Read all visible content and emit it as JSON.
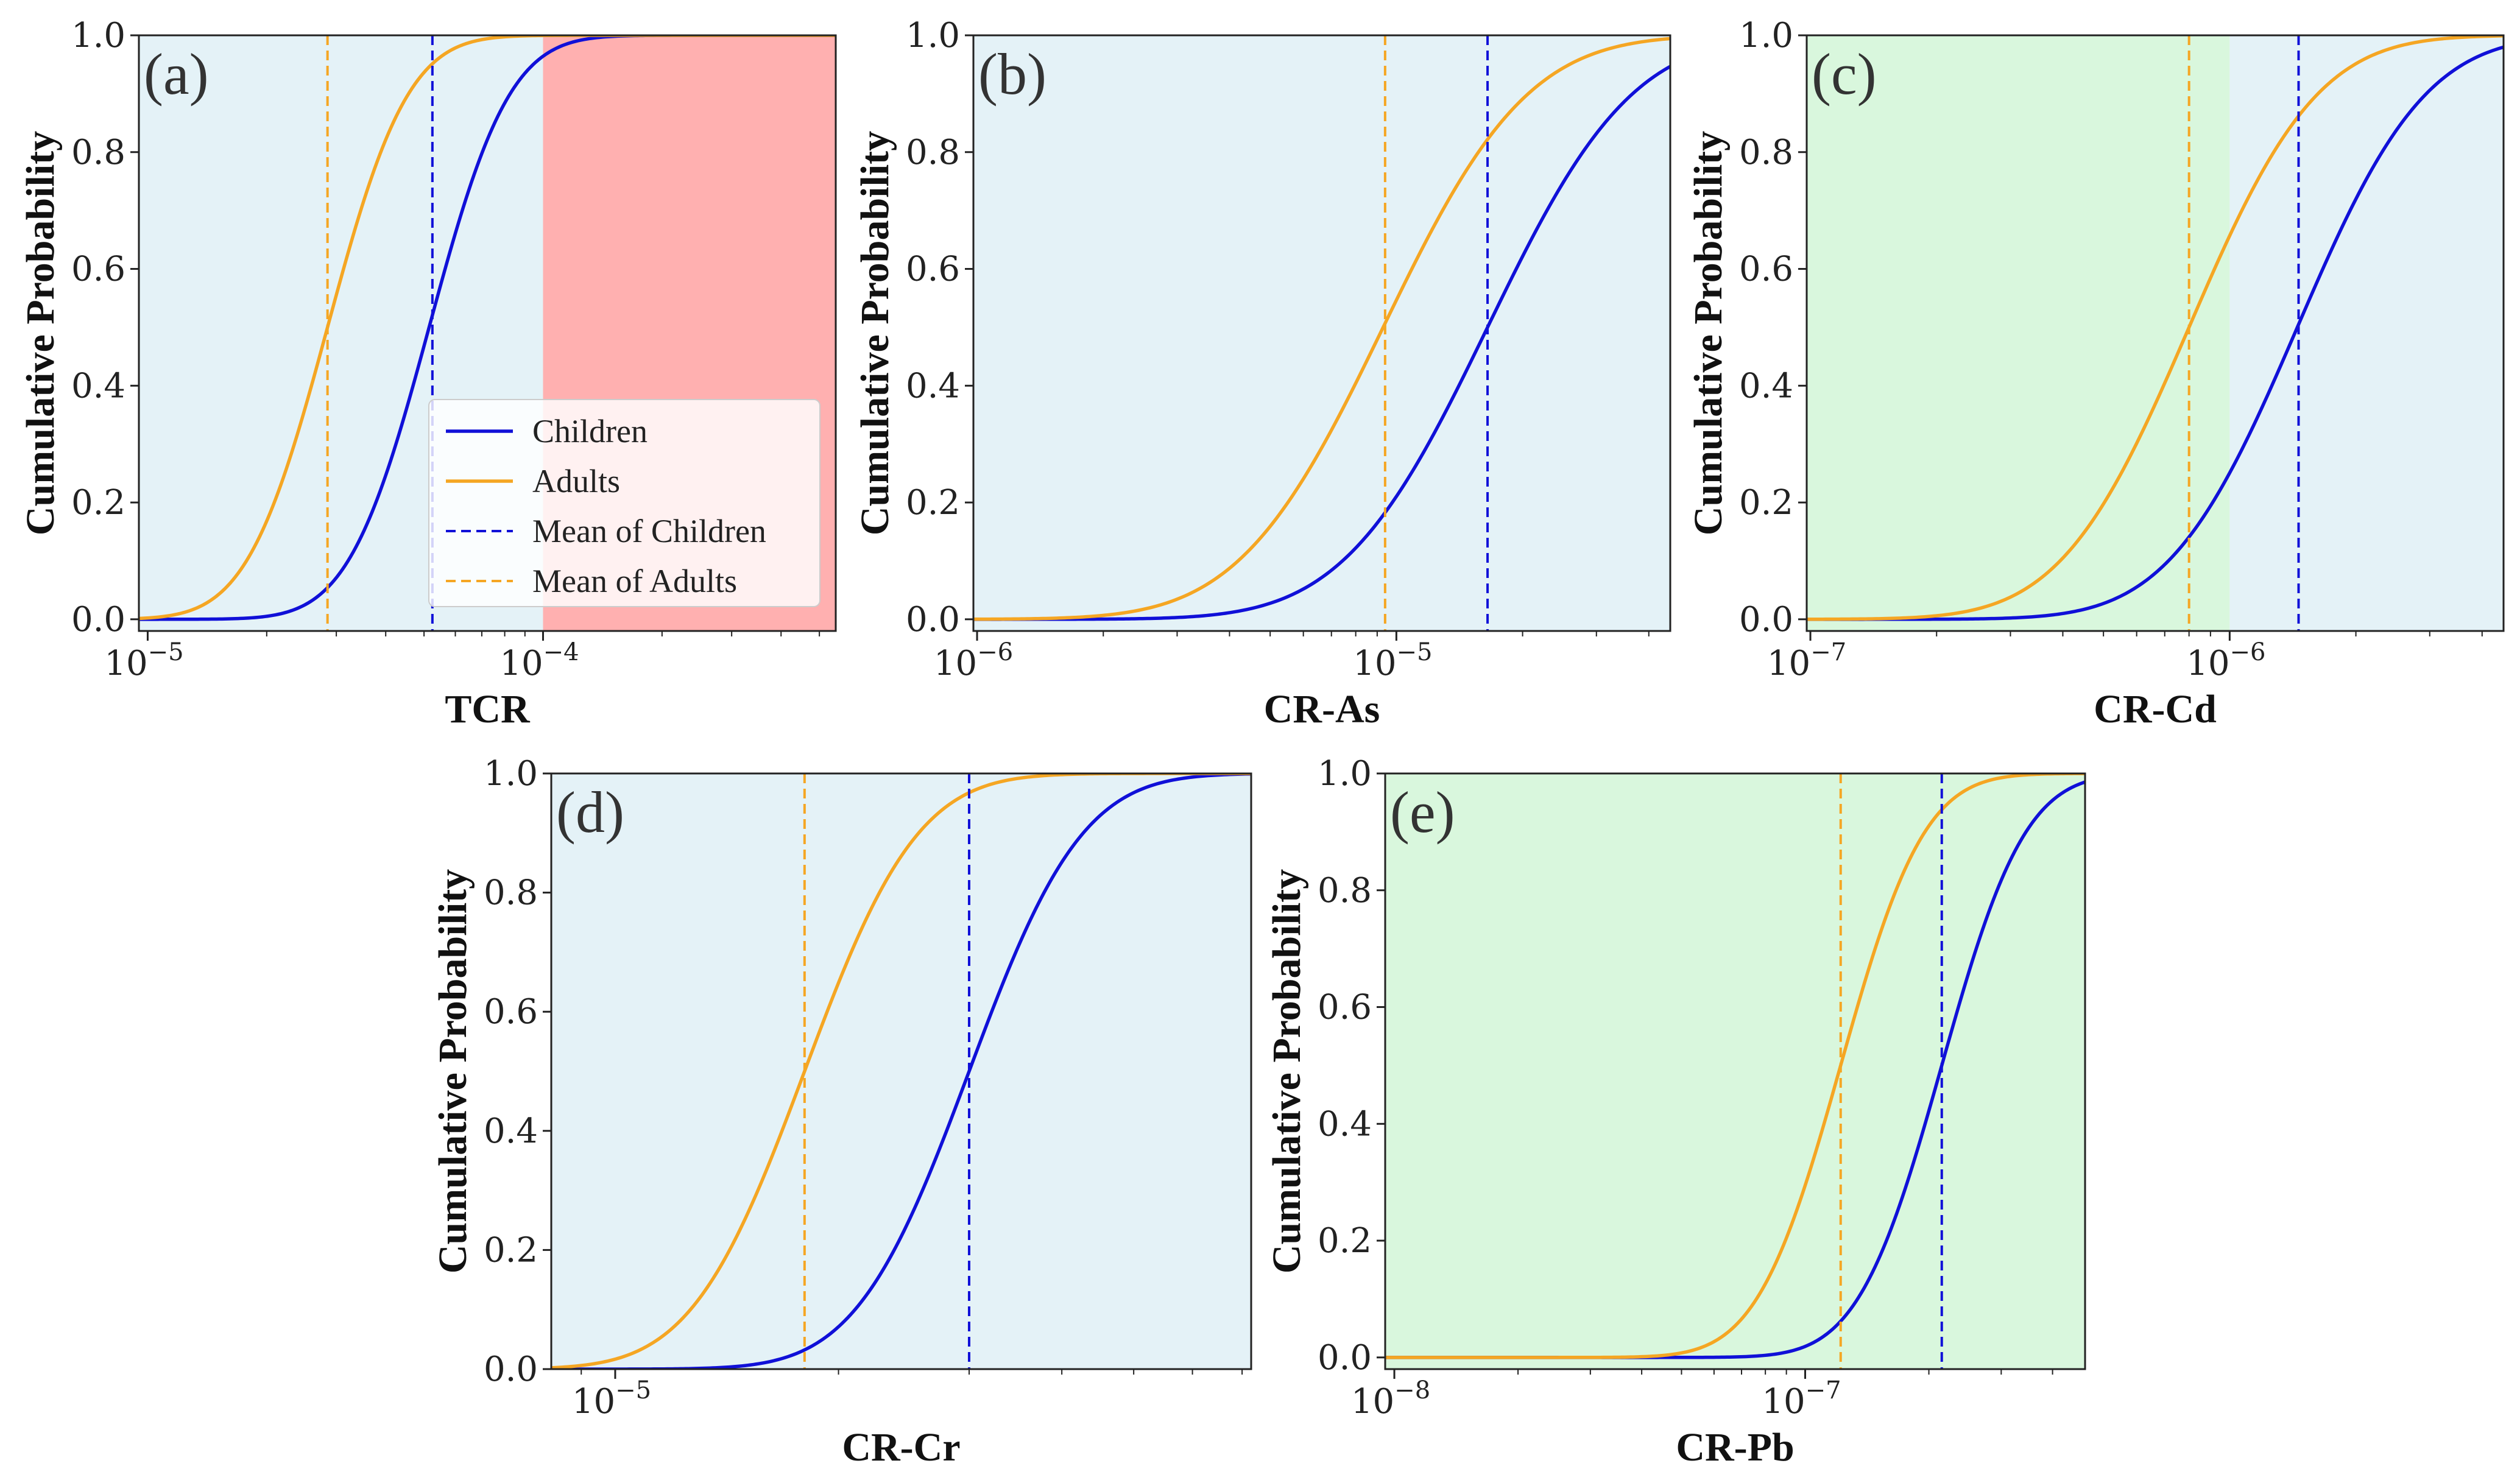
{
  "chart_data": [
    {
      "type": "line",
      "panel_label": "(a)",
      "xscale": "log",
      "xlim": [
        9.5e-06,
        0.00055
      ],
      "ylim": [
        -0.02,
        1.0
      ],
      "xlabel": "TCR",
      "ylabel": "Cumulative Probability",
      "xticks": [
        {
          "value": 1e-05,
          "base": "10",
          "exp": "−5"
        },
        {
          "value": 0.0001,
          "base": "10",
          "exp": "−4"
        }
      ],
      "yticks": [
        "0.0",
        "0.2",
        "0.4",
        "0.6",
        "0.8",
        "1.0"
      ],
      "regions": [
        {
          "from": 9.5e-06,
          "to": 0.0001,
          "color": "#e4f2f7"
        },
        {
          "from": 0.0001,
          "to": 0.00055,
          "color": "#ffb0b0"
        }
      ],
      "series": [
        {
          "name": "Children",
          "role": "cdf",
          "color": "#1010d8",
          "median": 5.15e-05,
          "sigma": 0.16
        },
        {
          "name": "Adults",
          "role": "cdf",
          "color": "#f5a623",
          "median": 2.85e-05,
          "sigma": 0.16
        },
        {
          "name": "Mean of Children",
          "role": "mean",
          "color": "#1010d8",
          "value": 5.25e-05
        },
        {
          "name": "Mean of Adults",
          "role": "mean",
          "color": "#f5a623",
          "value": 2.85e-05
        }
      ],
      "legend": {
        "position": "lower-right",
        "entries": [
          {
            "label": "Children",
            "color": "#1010d8",
            "style": "solid"
          },
          {
            "label": "Adults",
            "color": "#f5a623",
            "style": "solid"
          },
          {
            "label": "Mean of Children",
            "color": "#1010d8",
            "style": "dashed"
          },
          {
            "label": "Mean of Adults",
            "color": "#f5a623",
            "style": "dashed"
          }
        ]
      }
    },
    {
      "type": "line",
      "panel_label": "(b)",
      "xscale": "log",
      "xlim": [
        9.8e-07,
        4.5e-05
      ],
      "ylim": [
        -0.02,
        1.0
      ],
      "xlabel": "CR-As",
      "ylabel": "Cumulative Probability",
      "xticks": [
        {
          "value": 1e-06,
          "base": "10",
          "exp": "−6"
        },
        {
          "value": 1e-05,
          "base": "10",
          "exp": "−5"
        }
      ],
      "yticks": [
        "0.0",
        "0.2",
        "0.4",
        "0.6",
        "0.8",
        "1.0"
      ],
      "regions": [
        {
          "from": 9.8e-07,
          "to": 4.5e-05,
          "color": "#e4f2f7"
        }
      ],
      "series": [
        {
          "name": "Children",
          "role": "cdf",
          "color": "#1010d8",
          "median": 1.65e-05,
          "sigma": 0.27
        },
        {
          "name": "Adults",
          "role": "cdf",
          "color": "#f5a623",
          "median": 9.3e-06,
          "sigma": 0.27
        },
        {
          "name": "Mean of Children",
          "role": "mean",
          "color": "#1010d8",
          "value": 1.65e-05
        },
        {
          "name": "Mean of Adults",
          "role": "mean",
          "color": "#f5a623",
          "value": 9.4e-06
        }
      ]
    },
    {
      "type": "line",
      "panel_label": "(c)",
      "xscale": "log",
      "xlim": [
        9.8e-08,
        4.5e-06
      ],
      "ylim": [
        -0.02,
        1.0
      ],
      "xlabel": "CR-Cd",
      "ylabel": "Cumulative Probability",
      "xticks": [
        {
          "value": 1e-07,
          "base": "10",
          "exp": "−7"
        },
        {
          "value": 1e-06,
          "base": "10",
          "exp": "−6"
        }
      ],
      "yticks": [
        "0.0",
        "0.2",
        "0.4",
        "0.6",
        "0.8",
        "1.0"
      ],
      "regions": [
        {
          "from": 9.8e-08,
          "to": 1e-06,
          "color": "#d9f7dd"
        },
        {
          "from": 1e-06,
          "to": 4.5e-06,
          "color": "#e4f2f7"
        }
      ],
      "series": [
        {
          "name": "Children",
          "role": "cdf",
          "color": "#1010d8",
          "median": 1.45e-06,
          "sigma": 0.24
        },
        {
          "name": "Adults",
          "role": "cdf",
          "color": "#f5a623",
          "median": 8e-07,
          "sigma": 0.24
        },
        {
          "name": "Mean of Children",
          "role": "mean",
          "color": "#1010d8",
          "value": 1.46e-06
        },
        {
          "name": "Mean of Adults",
          "role": "mean",
          "color": "#f5a623",
          "value": 8e-07
        }
      ]
    },
    {
      "type": "line",
      "panel_label": "(d)",
      "xscale": "log",
      "xlim": [
        8.2e-06,
        7.2e-05
      ],
      "ylim": [
        0.0,
        1.0
      ],
      "xlabel": "CR-Cr",
      "ylabel": "Cumulative Probability",
      "xticks": [
        {
          "value": 1e-05,
          "base": "10",
          "exp": "−5"
        }
      ],
      "yticks": [
        "0.0",
        "0.2",
        "0.4",
        "0.6",
        "0.8",
        "1.0"
      ],
      "regions": [
        {
          "from": 8.2e-06,
          "to": 7.2e-05,
          "color": "#e4f2f7"
        }
      ],
      "series": [
        {
          "name": "Children",
          "role": "cdf",
          "color": "#1010d8",
          "median": 3e-05,
          "sigma": 0.12
        },
        {
          "name": "Adults",
          "role": "cdf",
          "color": "#f5a623",
          "median": 1.8e-05,
          "sigma": 0.12
        },
        {
          "name": "Mean of Children",
          "role": "mean",
          "color": "#1010d8",
          "value": 3e-05
        },
        {
          "name": "Mean of Adults",
          "role": "mean",
          "color": "#f5a623",
          "value": 1.8e-05
        }
      ]
    },
    {
      "type": "line",
      "panel_label": "(e)",
      "xscale": "log",
      "xlim": [
        9.5e-09,
        4.8e-07
      ],
      "ylim": [
        -0.02,
        1.0
      ],
      "xlabel": "CR-Pb",
      "ylabel": "Cumulative Probability",
      "xticks": [
        {
          "value": 1e-08,
          "base": "10",
          "exp": "−8"
        },
        {
          "value": 1e-07,
          "base": "10",
          "exp": "−7"
        }
      ],
      "yticks": [
        "0.0",
        "0.2",
        "0.4",
        "0.6",
        "0.8",
        "1.0"
      ],
      "regions": [
        {
          "from": 9.5e-09,
          "to": 4.8e-07,
          "color": "#d9f7dd"
        }
      ],
      "series": [
        {
          "name": "Children",
          "role": "cdf",
          "color": "#1010d8",
          "median": 2.15e-07,
          "sigma": 0.16
        },
        {
          "name": "Adults",
          "role": "cdf",
          "color": "#f5a623",
          "median": 1.22e-07,
          "sigma": 0.16
        },
        {
          "name": "Mean of Children",
          "role": "mean",
          "color": "#1010d8",
          "value": 2.15e-07
        },
        {
          "name": "Mean of Adults",
          "role": "mean",
          "color": "#f5a623",
          "value": 1.22e-07
        }
      ]
    }
  ]
}
